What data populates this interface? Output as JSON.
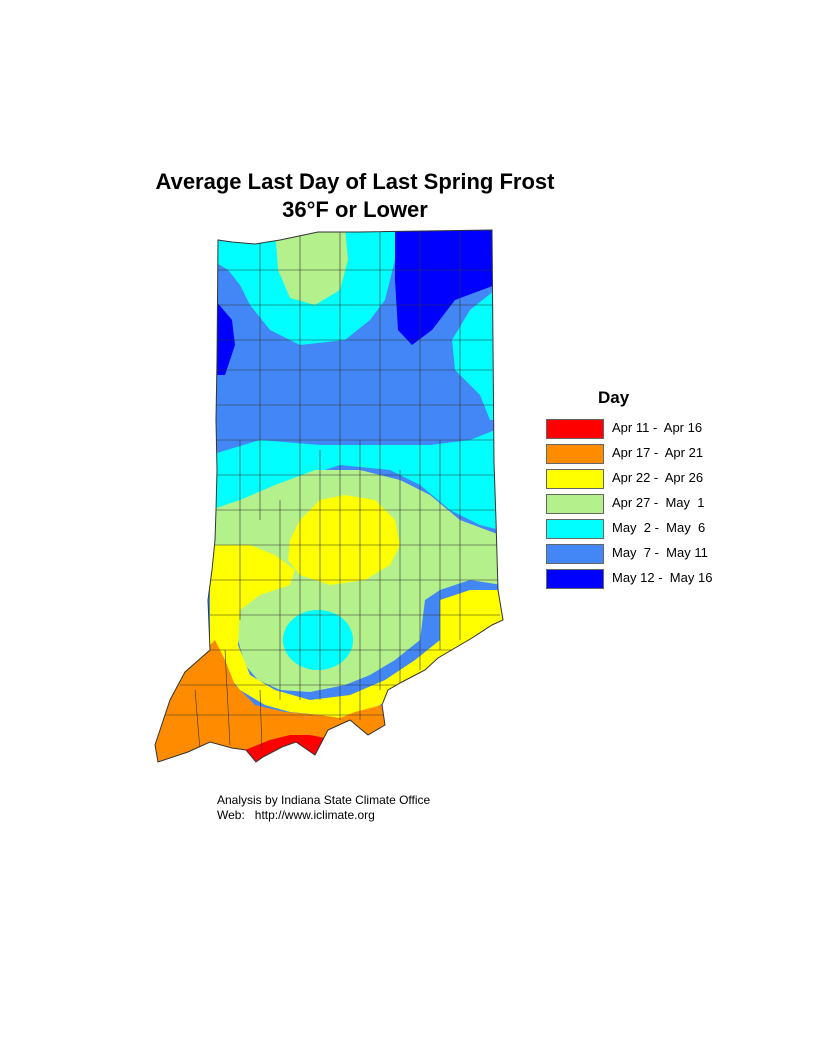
{
  "title_line1": "Average Last Day of Last Spring Frost",
  "title_line2": "36°F or Lower",
  "legend": {
    "title": "Day",
    "items": [
      {
        "label": "Apr 11 -  Apr 16",
        "color": "#ff0000"
      },
      {
        "label": "Apr 17 -  Apr 21",
        "color": "#ff8c00"
      },
      {
        "label": "Apr 22 -  Apr 26",
        "color": "#ffff00"
      },
      {
        "label": "Apr 27 -  May  1",
        "color": "#b4f08c"
      },
      {
        "label": "May  2 -  May  6",
        "color": "#00ffff"
      },
      {
        "label": "May  7 -  May 11",
        "color": "#4287f5"
      },
      {
        "label": "May 12 -  May 16",
        "color": "#0000ff"
      }
    ]
  },
  "credit_line1": "Analysis by Indiana State Climate Office",
  "credit_line2": "Web:   http://www.iclimate.org"
}
